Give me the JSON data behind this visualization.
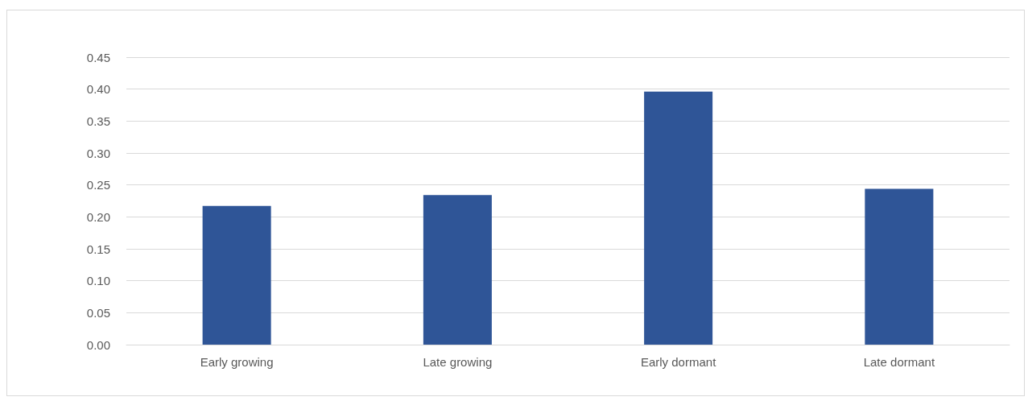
{
  "chart_data": {
    "type": "bar",
    "categories": [
      "Early growing",
      "Late growing",
      "Early dormant",
      "Late dormant"
    ],
    "values": [
      0.217,
      0.234,
      0.396,
      0.244
    ],
    "color": "#2f5597",
    "ylim": [
      0,
      0.45
    ],
    "yticks": [
      {
        "value": 0,
        "label": "0.00"
      },
      {
        "value": 0.05,
        "label": "0.05"
      },
      {
        "value": 0.1,
        "label": "0.10"
      },
      {
        "value": 0.15,
        "label": "0.15"
      },
      {
        "value": 0.2,
        "label": "0.20"
      },
      {
        "value": 0.25,
        "label": "0.25"
      },
      {
        "value": 0.3,
        "label": "0.30"
      },
      {
        "value": 0.35,
        "label": "0.35"
      },
      {
        "value": 0.4,
        "label": "0.40"
      },
      {
        "value": 0.45,
        "label": "0.45"
      }
    ],
    "grid": "y"
  }
}
